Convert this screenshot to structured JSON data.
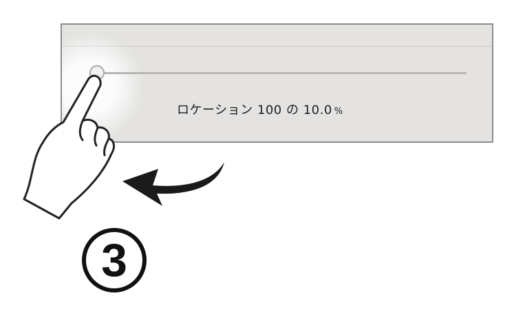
{
  "slider": {
    "value": 10,
    "max": 100,
    "readout_prefix": "ロケーション 100 の",
    "readout_value": "10.0",
    "readout_unit": "%"
  },
  "instruction": {
    "step_number": "3",
    "gesture": "swipe-left",
    "arrow_direction": "left"
  },
  "colors": {
    "panel_background": "#e4e3e1",
    "arrow": "#1a1a1a"
  }
}
